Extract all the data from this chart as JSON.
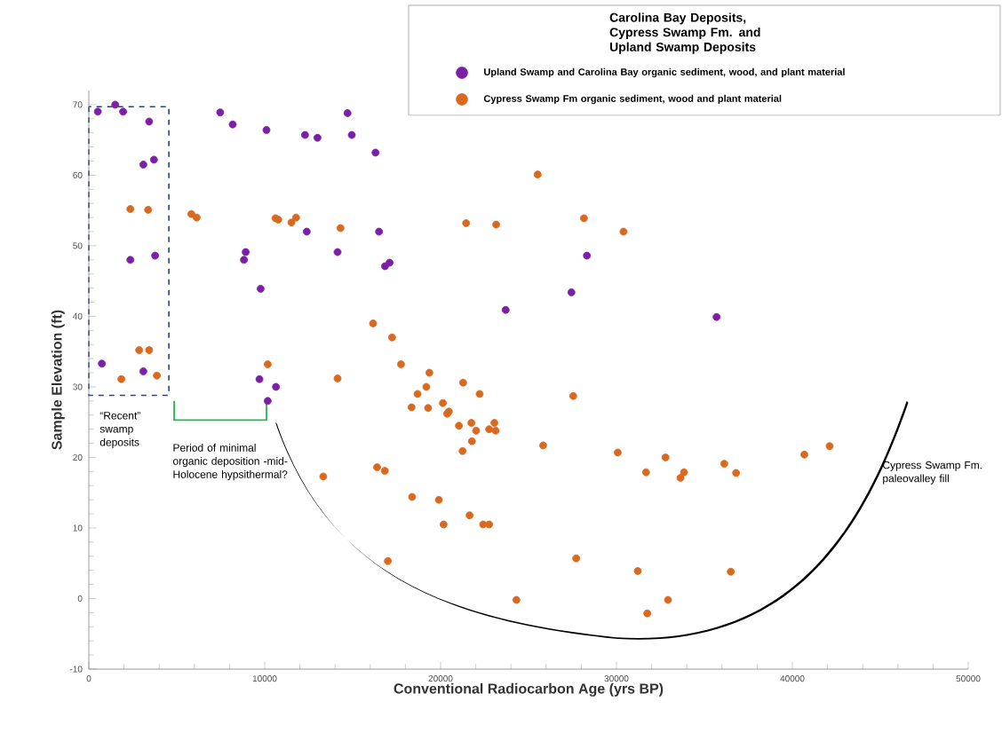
{
  "chart_data": {
    "type": "scatter",
    "xlabel": "Conventional Radiocarbon Age (yrs BP)",
    "ylabel": "Sample Elevation (ft)",
    "legend_title": "Carolina Bay Deposits, Cypress Swamp Fm. and Upland Swamp Deposits",
    "legend": "top right",
    "marker": "circle",
    "grid": false,
    "xlim": [
      0,
      50000
    ],
    "ylim": [
      -10,
      72
    ],
    "xticks": [
      0,
      10000,
      20000,
      30000,
      40000,
      50000
    ],
    "yticks": [
      -10,
      0,
      10,
      20,
      30,
      40,
      50,
      60,
      70
    ],
    "annotations": [
      "“Recent” swamp deposits",
      "Period of minimal organic deposition -mid-Holocene hypsithermal?",
      "Cypress Swamp Fm. paleovalley fill"
    ],
    "series": [
      {
        "name": "Upland Swamp and Carolina Bay organic sediment, wood, and plant material",
        "color": "#7b1fa8",
        "x": [
          510,
          1500,
          1950,
          3430,
          3100,
          3700,
          2360,
          3770,
          740,
          3100,
          7470,
          8180,
          10100,
          12290,
          13000,
          14710,
          14950,
          16300,
          12390,
          16500,
          8920,
          8820,
          14140,
          16840,
          17100,
          9770,
          9700,
          10640,
          10170,
          28320,
          27440,
          23700,
          35690
        ],
        "values": [
          69.0,
          70.0,
          69.0,
          67.6,
          61.5,
          62.2,
          48.0,
          48.6,
          33.3,
          32.2,
          68.9,
          67.2,
          66.4,
          65.7,
          65.3,
          68.8,
          65.7,
          63.2,
          52.0,
          52.0,
          49.1,
          48.0,
          49.1,
          47.1,
          47.6,
          43.9,
          31.1,
          30.0,
          28.0,
          48.6,
          43.4,
          40.9,
          39.9
        ]
      },
      {
        "name": "Cypress Swamp Fm organic sediment, wood and plant material",
        "color": "#d9691f",
        "x": [
          2360,
          3370,
          5830,
          6130,
          10610,
          10770,
          11520,
          11780,
          14310,
          2860,
          3430,
          1850,
          3870,
          10170,
          14140,
          16160,
          17240,
          17750,
          25520,
          21450,
          23160,
          28150,
          30400,
          19360,
          18690,
          19190,
          18350,
          19290,
          20130,
          20370,
          20470,
          21280,
          22220,
          21040,
          21750,
          22020,
          22760,
          23060,
          23130,
          21780,
          21250,
          16390,
          16830,
          18380,
          19900,
          20170,
          21650,
          22420,
          22760,
          17000,
          27540,
          25830,
          30070,
          31680,
          32790,
          33640,
          33840,
          27710,
          31210,
          32930,
          31750,
          24310,
          13330,
          36130,
          36800,
          40680,
          42120,
          36500
        ],
        "values": [
          55.2,
          55.1,
          54.5,
          54.0,
          53.9,
          53.7,
          53.3,
          54.0,
          52.5,
          35.2,
          35.2,
          31.1,
          31.6,
          33.2,
          31.2,
          39.0,
          37.0,
          33.2,
          60.1,
          53.2,
          53.0,
          53.9,
          52.0,
          32.0,
          29.0,
          30.0,
          27.1,
          27.0,
          27.7,
          26.2,
          26.5,
          30.6,
          29.0,
          24.5,
          24.9,
          23.8,
          24.0,
          24.9,
          23.8,
          22.3,
          20.9,
          18.6,
          18.1,
          14.4,
          14.0,
          10.5,
          11.8,
          10.5,
          10.5,
          5.3,
          28.7,
          21.7,
          20.7,
          17.9,
          20.0,
          17.1,
          17.9,
          5.7,
          3.9,
          -0.2,
          -2.1,
          -0.2,
          17.3,
          19.1,
          17.8,
          20.4,
          21.6,
          3.8
        ]
      }
    ]
  }
}
